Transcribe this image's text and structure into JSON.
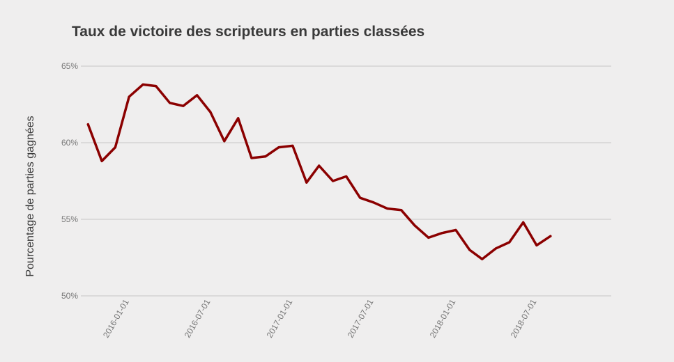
{
  "chart_data": {
    "type": "line",
    "title": "Taux de victoire des scripteurs en parties classées",
    "ylabel": "Pourcentage de parties gagnées",
    "xlabel": "",
    "ylim": [
      50,
      65
    ],
    "yticks": [
      50,
      55,
      60,
      65
    ],
    "ytick_labels": [
      "50%",
      "55%",
      "60%",
      "65%"
    ],
    "xticks": [
      "2016-01-01",
      "2016-07-01",
      "2017-01-01",
      "2017-07-01",
      "2018-01-01",
      "2018-07-01"
    ],
    "xlim": [
      "2015-09-15",
      "2018-12-15"
    ],
    "grid": "horizontal",
    "colors": {
      "line": "#8b0000",
      "grid": "#c7c7c7",
      "background": "#efeeee"
    },
    "series": [
      {
        "x": [
          "2015-10-01",
          "2015-11-01",
          "2015-12-01",
          "2016-01-01",
          "2016-02-01",
          "2016-03-01",
          "2016-04-01",
          "2016-05-01",
          "2016-06-01",
          "2016-07-01",
          "2016-08-01",
          "2016-09-01",
          "2016-10-01",
          "2016-11-01",
          "2016-12-01",
          "2017-01-01",
          "2017-02-01",
          "2017-03-01",
          "2017-04-01",
          "2017-05-01",
          "2017-06-01",
          "2017-07-01",
          "2017-08-01",
          "2017-09-01",
          "2017-10-01",
          "2017-11-01",
          "2017-12-01",
          "2018-01-01",
          "2018-02-01",
          "2018-03-01",
          "2018-04-01",
          "2018-05-01",
          "2018-06-01",
          "2018-07-01",
          "2018-08-01",
          "2018-09-01"
        ],
        "values": [
          61.2,
          58.8,
          59.7,
          63.0,
          63.8,
          63.7,
          62.6,
          62.4,
          63.1,
          62.0,
          60.1,
          61.6,
          59.0,
          59.1,
          59.7,
          59.8,
          57.4,
          58.5,
          57.5,
          57.8,
          56.4,
          56.1,
          55.7,
          55.6,
          54.6,
          53.8,
          54.1,
          54.3,
          53.0,
          52.4,
          53.1,
          53.5,
          54.8,
          53.3,
          53.9,
          null
        ]
      }
    ]
  }
}
